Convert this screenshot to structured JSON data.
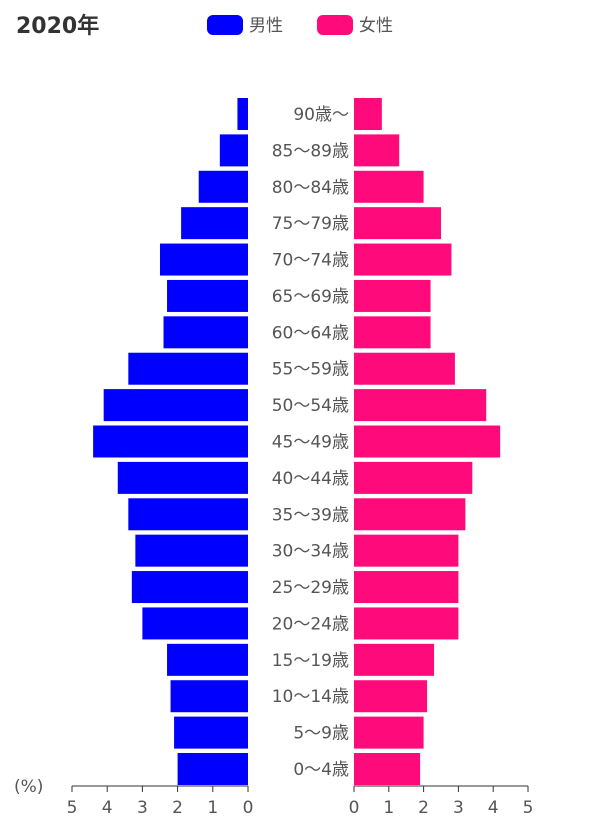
{
  "chart_data": {
    "type": "pyramid",
    "title": "2020年",
    "x_label": "(%)",
    "categories": [
      "0〜4歳",
      "5〜9歳",
      "10〜14歳",
      "15〜19歳",
      "20〜24歳",
      "25〜29歳",
      "30〜34歳",
      "35〜39歳",
      "40〜44歳",
      "45〜49歳",
      "50〜54歳",
      "55〜59歳",
      "60〜64歳",
      "65〜69歳",
      "70〜74歳",
      "75〜79歳",
      "80〜84歳",
      "85〜89歳",
      "90歳〜"
    ],
    "series": [
      {
        "name": "男性",
        "color": "#0000ff",
        "side": "left",
        "values": [
          2.0,
          2.1,
          2.2,
          2.3,
          3.0,
          3.3,
          3.2,
          3.4,
          3.7,
          4.4,
          4.1,
          3.4,
          2.4,
          2.3,
          2.5,
          1.9,
          1.4,
          0.8,
          0.3
        ]
      },
      {
        "name": "女性",
        "color": "#ff0a7a",
        "side": "right",
        "values": [
          1.9,
          2.0,
          2.1,
          2.3,
          3.0,
          3.0,
          3.0,
          3.2,
          3.4,
          4.2,
          3.8,
          2.9,
          2.2,
          2.2,
          2.8,
          2.5,
          2.0,
          1.3,
          0.8
        ]
      }
    ],
    "xlim": [
      0,
      5
    ],
    "xticks": [
      0,
      1,
      2,
      3,
      4,
      5
    ]
  }
}
